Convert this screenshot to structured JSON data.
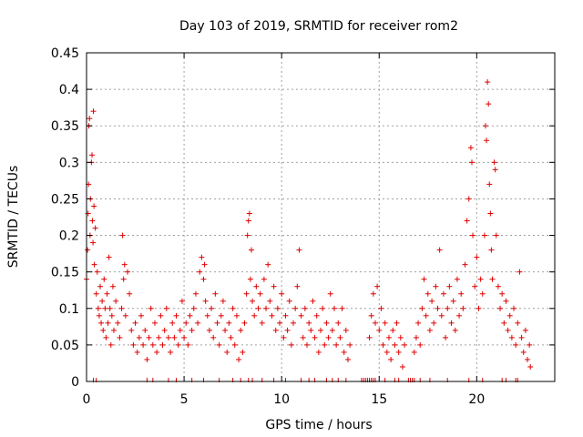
{
  "chart_data": {
    "type": "scatter",
    "title": "Day 103 of 2019, SRMTID for receiver rom2",
    "xlabel": "GPS time / hours",
    "ylabel": "SRMTID / TECUs",
    "xlim": [
      0,
      24
    ],
    "ylim": [
      0,
      0.45
    ],
    "xticks": [
      0,
      5,
      10,
      15,
      20
    ],
    "xtick_labels": [
      "0",
      "5",
      "10",
      "15",
      "20"
    ],
    "yticks": [
      0,
      0.05,
      0.1,
      0.15,
      0.2,
      0.25,
      0.3,
      0.35,
      0.4,
      0.45
    ],
    "ytick_labels": [
      "0",
      "0.05",
      "0.1",
      "0.15",
      "0.2",
      "0.25",
      "0.3",
      "0.35",
      "0.4",
      "0.45"
    ],
    "grid": true,
    "marker": "+",
    "series": [
      {
        "name": "SRMTID",
        "color": "#e00000",
        "points": [
          [
            0.0,
            0.14
          ],
          [
            0.05,
            0.18
          ],
          [
            0.08,
            0.23
          ],
          [
            0.1,
            0.27
          ],
          [
            0.12,
            0.35
          ],
          [
            0.15,
            0.36
          ],
          [
            0.18,
            0.2
          ],
          [
            0.2,
            0.25
          ],
          [
            0.25,
            0.3
          ],
          [
            0.28,
            0.31
          ],
          [
            0.3,
            0.22
          ],
          [
            0.33,
            0.19
          ],
          [
            0.35,
            0.37
          ],
          [
            0.38,
            0.24
          ],
          [
            0.4,
            0.16
          ],
          [
            0.45,
            0.21
          ],
          [
            0.5,
            0.12
          ],
          [
            0.55,
            0.15
          ],
          [
            0.6,
            0.1
          ],
          [
            0.65,
            0.09
          ],
          [
            0.7,
            0.13
          ],
          [
            0.75,
            0.08
          ],
          [
            0.8,
            0.11
          ],
          [
            0.85,
            0.07
          ],
          [
            0.9,
            0.14
          ],
          [
            0.95,
            0.1
          ],
          [
            1.0,
            0.06
          ],
          [
            1.05,
            0.12
          ],
          [
            1.1,
            0.08
          ],
          [
            1.15,
            0.17
          ],
          [
            1.2,
            0.1
          ],
          [
            1.25,
            0.05
          ],
          [
            1.3,
            0.09
          ],
          [
            1.35,
            0.13
          ],
          [
            1.4,
            0.07
          ],
          [
            1.5,
            0.11
          ],
          [
            1.6,
            0.08
          ],
          [
            1.7,
            0.06
          ],
          [
            1.8,
            0.1
          ],
          [
            1.85,
            0.2
          ],
          [
            1.9,
            0.14
          ],
          [
            1.95,
            0.16
          ],
          [
            2.0,
            0.09
          ],
          [
            2.1,
            0.15
          ],
          [
            2.2,
            0.12
          ],
          [
            2.3,
            0.07
          ],
          [
            2.4,
            0.05
          ],
          [
            2.5,
            0.08
          ],
          [
            2.6,
            0.04
          ],
          [
            2.7,
            0.06
          ],
          [
            2.8,
            0.09
          ],
          [
            2.9,
            0.05
          ],
          [
            3.0,
            0.07
          ],
          [
            3.1,
            0.03
          ],
          [
            3.2,
            0.06
          ],
          [
            3.3,
            0.1
          ],
          [
            3.4,
            0.05
          ],
          [
            3.5,
            0.08
          ],
          [
            3.6,
            0.04
          ],
          [
            3.7,
            0.06
          ],
          [
            3.8,
            0.09
          ],
          [
            3.9,
            0.05
          ],
          [
            4.0,
            0.07
          ],
          [
            4.1,
            0.1
          ],
          [
            4.2,
            0.06
          ],
          [
            4.3,
            0.04
          ],
          [
            4.4,
            0.08
          ],
          [
            4.5,
            0.06
          ],
          [
            4.6,
            0.09
          ],
          [
            4.7,
            0.05
          ],
          [
            4.8,
            0.07
          ],
          [
            4.9,
            0.11
          ],
          [
            5.0,
            0.06
          ],
          [
            5.1,
            0.08
          ],
          [
            5.2,
            0.05
          ],
          [
            5.3,
            0.09
          ],
          [
            5.4,
            0.07
          ],
          [
            5.5,
            0.1
          ],
          [
            5.6,
            0.12
          ],
          [
            5.7,
            0.08
          ],
          [
            5.8,
            0.15
          ],
          [
            5.9,
            0.17
          ],
          [
            6.0,
            0.14
          ],
          [
            6.05,
            0.16
          ],
          [
            6.1,
            0.11
          ],
          [
            6.2,
            0.09
          ],
          [
            6.3,
            0.07
          ],
          [
            6.4,
            0.1
          ],
          [
            6.5,
            0.06
          ],
          [
            6.6,
            0.12
          ],
          [
            6.7,
            0.08
          ],
          [
            6.8,
            0.05
          ],
          [
            6.9,
            0.09
          ],
          [
            7.0,
            0.11
          ],
          [
            7.1,
            0.07
          ],
          [
            7.2,
            0.04
          ],
          [
            7.3,
            0.08
          ],
          [
            7.4,
            0.06
          ],
          [
            7.5,
            0.1
          ],
          [
            7.6,
            0.05
          ],
          [
            7.7,
            0.09
          ],
          [
            7.8,
            0.03
          ],
          [
            7.9,
            0.07
          ],
          [
            8.0,
            0.04
          ],
          [
            8.1,
            0.08
          ],
          [
            8.2,
            0.12
          ],
          [
            8.25,
            0.2
          ],
          [
            8.3,
            0.22
          ],
          [
            8.35,
            0.23
          ],
          [
            8.4,
            0.14
          ],
          [
            8.45,
            0.18
          ],
          [
            8.5,
            0.11
          ],
          [
            8.6,
            0.09
          ],
          [
            8.7,
            0.13
          ],
          [
            8.8,
            0.1
          ],
          [
            8.9,
            0.12
          ],
          [
            9.0,
            0.08
          ],
          [
            9.1,
            0.14
          ],
          [
            9.2,
            0.1
          ],
          [
            9.3,
            0.16
          ],
          [
            9.4,
            0.11
          ],
          [
            9.5,
            0.09
          ],
          [
            9.6,
            0.13
          ],
          [
            9.7,
            0.07
          ],
          [
            9.8,
            0.1
          ],
          [
            9.9,
            0.08
          ],
          [
            10.0,
            0.12
          ],
          [
            10.1,
            0.06
          ],
          [
            10.2,
            0.09
          ],
          [
            10.3,
            0.07
          ],
          [
            10.4,
            0.11
          ],
          [
            10.5,
            0.05
          ],
          [
            10.6,
            0.08
          ],
          [
            10.7,
            0.1
          ],
          [
            10.8,
            0.13
          ],
          [
            10.9,
            0.18
          ],
          [
            11.0,
            0.09
          ],
          [
            11.1,
            0.06
          ],
          [
            11.2,
            0.1
          ],
          [
            11.3,
            0.05
          ],
          [
            11.4,
            0.08
          ],
          [
            11.5,
            0.07
          ],
          [
            11.6,
            0.11
          ],
          [
            11.7,
            0.06
          ],
          [
            11.8,
            0.09
          ],
          [
            11.9,
            0.04
          ],
          [
            12.0,
            0.07
          ],
          [
            12.1,
            0.1
          ],
          [
            12.2,
            0.05
          ],
          [
            12.3,
            0.08
          ],
          [
            12.4,
            0.06
          ],
          [
            12.5,
            0.12
          ],
          [
            12.6,
            0.07
          ],
          [
            12.7,
            0.1
          ],
          [
            12.8,
            0.05
          ],
          [
            12.9,
            0.08
          ],
          [
            13.0,
            0.06
          ],
          [
            13.1,
            0.1
          ],
          [
            13.2,
            0.04
          ],
          [
            13.3,
            0.07
          ],
          [
            13.4,
            0.03
          ],
          [
            13.5,
            0.05
          ],
          [
            14.5,
            0.06
          ],
          [
            14.6,
            0.09
          ],
          [
            14.7,
            0.12
          ],
          [
            14.8,
            0.08
          ],
          [
            14.9,
            0.13
          ],
          [
            15.0,
            0.07
          ],
          [
            15.1,
            0.1
          ],
          [
            15.2,
            0.05
          ],
          [
            15.3,
            0.08
          ],
          [
            15.4,
            0.04
          ],
          [
            15.5,
            0.06
          ],
          [
            15.6,
            0.03
          ],
          [
            15.7,
            0.07
          ],
          [
            15.8,
            0.05
          ],
          [
            15.9,
            0.08
          ],
          [
            16.0,
            0.04
          ],
          [
            16.1,
            0.06
          ],
          [
            16.2,
            0.02
          ],
          [
            16.3,
            0.05
          ],
          [
            16.8,
            0.04
          ],
          [
            16.9,
            0.06
          ],
          [
            17.0,
            0.08
          ],
          [
            17.1,
            0.05
          ],
          [
            17.2,
            0.1
          ],
          [
            17.3,
            0.14
          ],
          [
            17.4,
            0.09
          ],
          [
            17.5,
            0.12
          ],
          [
            17.6,
            0.07
          ],
          [
            17.7,
            0.11
          ],
          [
            17.8,
            0.08
          ],
          [
            17.9,
            0.13
          ],
          [
            18.0,
            0.1
          ],
          [
            18.1,
            0.18
          ],
          [
            18.2,
            0.09
          ],
          [
            18.3,
            0.12
          ],
          [
            18.4,
            0.06
          ],
          [
            18.5,
            0.1
          ],
          [
            18.6,
            0.13
          ],
          [
            18.7,
            0.08
          ],
          [
            18.8,
            0.11
          ],
          [
            18.9,
            0.07
          ],
          [
            19.0,
            0.14
          ],
          [
            19.1,
            0.09
          ],
          [
            19.2,
            0.12
          ],
          [
            19.3,
            0.1
          ],
          [
            19.4,
            0.16
          ],
          [
            19.5,
            0.22
          ],
          [
            19.6,
            0.25
          ],
          [
            19.7,
            0.32
          ],
          [
            19.75,
            0.3
          ],
          [
            19.8,
            0.2
          ],
          [
            19.9,
            0.13
          ],
          [
            20.0,
            0.17
          ],
          [
            20.1,
            0.1
          ],
          [
            20.2,
            0.14
          ],
          [
            20.3,
            0.12
          ],
          [
            20.4,
            0.2
          ],
          [
            20.45,
            0.35
          ],
          [
            20.5,
            0.33
          ],
          [
            20.55,
            0.41
          ],
          [
            20.6,
            0.38
          ],
          [
            20.65,
            0.27
          ],
          [
            20.7,
            0.23
          ],
          [
            20.75,
            0.18
          ],
          [
            20.8,
            0.14
          ],
          [
            20.9,
            0.3
          ],
          [
            20.95,
            0.29
          ],
          [
            21.0,
            0.2
          ],
          [
            21.1,
            0.13
          ],
          [
            21.2,
            0.1
          ],
          [
            21.3,
            0.12
          ],
          [
            21.4,
            0.08
          ],
          [
            21.5,
            0.11
          ],
          [
            21.6,
            0.07
          ],
          [
            21.7,
            0.09
          ],
          [
            21.8,
            0.06
          ],
          [
            21.9,
            0.1
          ],
          [
            22.0,
            0.05
          ],
          [
            22.1,
            0.08
          ],
          [
            22.2,
            0.15
          ],
          [
            22.3,
            0.06
          ],
          [
            22.4,
            0.04
          ],
          [
            22.5,
            0.07
          ],
          [
            22.6,
            0.03
          ],
          [
            22.7,
            0.05
          ],
          [
            22.75,
            0.02
          ]
        ]
      }
    ],
    "zero_points_hours": [
      0.35,
      0.5,
      3.1,
      3.4,
      4.2,
      4.6,
      5.4,
      6.0,
      6.8,
      7.5,
      7.9,
      8.3,
      8.5,
      9.0,
      9.6,
      10.2,
      11.0,
      11.4,
      11.7,
      12.3,
      12.6,
      12.9,
      13.3,
      14.1,
      14.2,
      14.3,
      14.4,
      14.5,
      14.6,
      14.7,
      14.8,
      15.3,
      15.8,
      16.0,
      16.5,
      16.6,
      16.7,
      16.8,
      17.1,
      17.6,
      18.5,
      19.6,
      20.3,
      21.3,
      21.5,
      22.0,
      22.1
    ]
  }
}
